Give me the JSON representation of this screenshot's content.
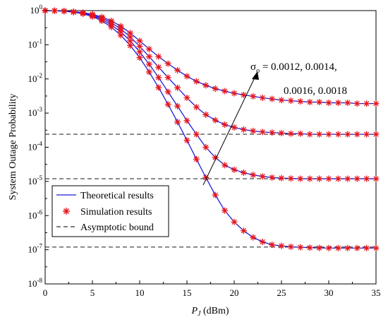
{
  "chart_data": {
    "type": "line",
    "xlabel_main": "P",
    "xlabel_sub": "J",
    "xlabel_unit": " (dBm)",
    "ylabel": "System Outage Probability",
    "xlim": [
      0,
      35
    ],
    "ylim": [
      1e-08,
      1
    ],
    "yscale": "log",
    "x_ticks": [
      "0",
      "5",
      "10",
      "15",
      "20",
      "25",
      "30",
      "35"
    ],
    "y_ticks": [
      {
        "base": "10",
        "exp": "0"
      },
      {
        "base": "10",
        "exp": "-1"
      },
      {
        "base": "10",
        "exp": "-2"
      },
      {
        "base": "10",
        "exp": "-3"
      },
      {
        "base": "10",
        "exp": "-4"
      },
      {
        "base": "10",
        "exp": "-5"
      },
      {
        "base": "10",
        "exp": "-6"
      },
      {
        "base": "10",
        "exp": "-7"
      },
      {
        "base": "10",
        "exp": "-8"
      }
    ],
    "grid": false,
    "legend": {
      "position": "bottom-left",
      "theoretical": "Theoretical results",
      "simulation": "Simulation results",
      "asymptotic": "Asymptotic bound"
    },
    "annotation": {
      "line1": "σ",
      "line1_sub": "o",
      "line1_rest": " = 0.0012, 0.0014,",
      "line2": "0.0016, 0.0018"
    },
    "x": [
      0,
      1,
      2,
      3,
      4,
      5,
      6,
      7,
      8,
      9,
      10,
      11,
      12,
      13,
      14,
      15,
      16,
      17,
      18,
      19,
      20,
      21,
      22,
      23,
      24,
      25,
      26,
      27,
      28,
      29,
      30,
      31,
      32,
      33,
      34,
      35
    ],
    "series": [
      {
        "values": [
          1,
          0.99,
          0.97,
          0.93,
          0.87,
          0.78,
          0.65,
          0.5,
          0.35,
          0.22,
          0.13,
          0.075,
          0.045,
          0.028,
          0.018,
          0.012,
          0.0085,
          0.0065,
          0.0052,
          0.0044,
          0.0038,
          0.0034,
          0.0031,
          0.0028,
          0.0026,
          0.0024,
          0.0023,
          0.0022,
          0.0021,
          0.0021,
          0.002,
          0.002,
          0.002,
          0.0019,
          0.0019,
          0.0019
        ]
      },
      {
        "values": [
          1,
          0.99,
          0.97,
          0.92,
          0.85,
          0.74,
          0.6,
          0.44,
          0.29,
          0.17,
          0.09,
          0.045,
          0.022,
          0.011,
          0.0055,
          0.0028,
          0.0015,
          0.0009,
          0.00062,
          0.00046,
          0.00038,
          0.00033,
          0.0003,
          0.00028,
          0.00027,
          0.00026,
          0.00025,
          0.00025,
          0.00024,
          0.00024,
          0.00024,
          0.00024,
          0.00024,
          0.00024,
          0.00024,
          0.00024
        ]
      },
      {
        "values": [
          1,
          0.99,
          0.96,
          0.91,
          0.83,
          0.71,
          0.55,
          0.38,
          0.24,
          0.13,
          0.062,
          0.027,
          0.011,
          0.0042,
          0.0016,
          0.0006,
          0.00024,
          0.0001,
          5e-05,
          3e-05,
          2.2e-05,
          1.8e-05,
          1.55e-05,
          1.4e-05,
          1.3e-05,
          1.25e-05,
          1.22e-05,
          1.2e-05,
          1.2e-05,
          1.2e-05,
          1.2e-05,
          1.2e-05,
          1.2e-05,
          1.2e-05,
          1.2e-05,
          1.2e-05
        ]
      },
      {
        "values": [
          1,
          0.99,
          0.96,
          0.9,
          0.81,
          0.67,
          0.5,
          0.33,
          0.19,
          0.095,
          0.042,
          0.016,
          0.0056,
          0.0018,
          0.00055,
          0.00016,
          4.5e-05,
          1.3e-05,
          4e-06,
          1.4e-06,
          6.5e-07,
          3.6e-07,
          2.3e-07,
          1.7e-07,
          1.4e-07,
          1.3e-07,
          1.22e-07,
          1.18e-07,
          1.15e-07,
          1.13e-07,
          1.12e-07,
          1.12e-07,
          1.12e-07,
          1.12e-07,
          1.12e-07,
          1.12e-07
        ]
      }
    ],
    "asymptotes": [
      0.00024,
      1.2e-05,
      1.2e-07
    ],
    "colors": {
      "theoretical": "#1f1fd8",
      "simulation": "#e8141b",
      "asymptotic": "#333333",
      "axis": "#000000"
    }
  }
}
